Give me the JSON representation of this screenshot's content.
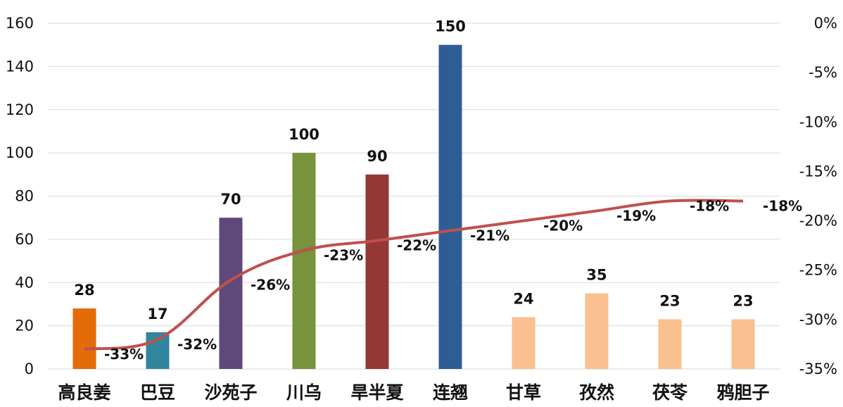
{
  "chart_data": {
    "type": "bar",
    "categories": [
      "高良姜",
      "巴豆",
      "沙苑子",
      "川乌",
      "旱半夏",
      "连翘",
      "甘草",
      "孜然",
      "茯苓",
      "鸦胆子"
    ],
    "series": [
      {
        "axis": "left",
        "chart_type": "bar",
        "values": [
          28,
          17,
          70,
          100,
          90,
          150,
          24,
          35,
          23,
          23
        ],
        "colors": [
          "#e36c09",
          "#31859c",
          "#5f497a",
          "#77933c",
          "#953735",
          "#2e5d94",
          "#fac090",
          "#fac090",
          "#fac090",
          "#fac090"
        ],
        "value_labels": [
          "28",
          "17",
          "70",
          "100",
          "90",
          "150",
          "24",
          "35",
          "23",
          "23"
        ]
      },
      {
        "axis": "right",
        "chart_type": "line",
        "values": [
          -33,
          -32,
          -26,
          -23,
          -22,
          -21,
          -20,
          -19,
          -18,
          -18
        ],
        "color": "#c0504d",
        "value_labels": [
          "-33%",
          "-32%",
          "-26%",
          "-23%",
          "-22%",
          "-21%",
          "-20%",
          "-19%",
          "-18%",
          "-18%"
        ]
      }
    ],
    "left_axis": {
      "ylim": [
        0,
        160
      ],
      "ticks": [
        "0",
        "20",
        "40",
        "60",
        "80",
        "100",
        "120",
        "140",
        "160"
      ]
    },
    "right_axis": {
      "ylim": [
        -35,
        0
      ],
      "ticks": [
        "-35%",
        "-30%",
        "-25%",
        "-20%",
        "-15%",
        "-10%",
        "-5%",
        "0%"
      ]
    },
    "grid": true,
    "legend": "none"
  }
}
